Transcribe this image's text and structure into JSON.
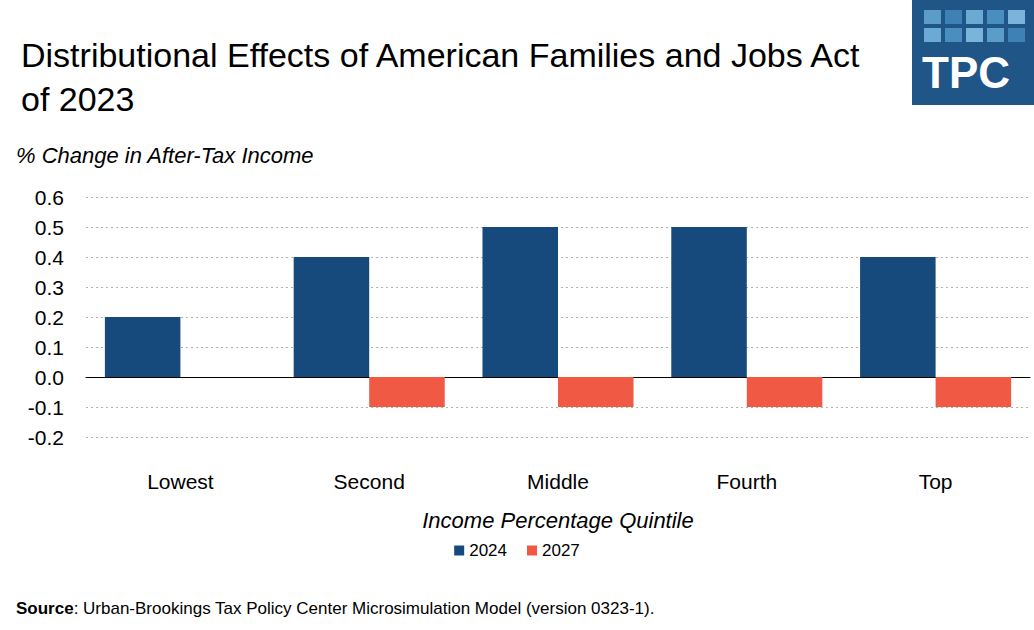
{
  "chart_data": {
    "type": "bar",
    "title": "Distributional Effects of American Families and Jobs Act of 2023",
    "y_label": "% Change in After-Tax Income",
    "x_label": "Income Percentage Quintile",
    "categories": [
      "Lowest",
      "Second",
      "Middle",
      "Fourth",
      "Top"
    ],
    "series": [
      {
        "name": "2024",
        "color": "#174a7c",
        "values": [
          0.2,
          0.4,
          0.5,
          0.5,
          0.4
        ]
      },
      {
        "name": "2027",
        "color": "#f05a44",
        "values": [
          0,
          -0.1,
          -0.1,
          -0.1,
          -0.1
        ]
      }
    ],
    "ylim": [
      -0.2,
      0.6
    ],
    "yticks": [
      -0.2,
      -0.1,
      {
        "value": 0,
        "label": "0.0"
      },
      0.1,
      0.2,
      0.3,
      0.4,
      0.5,
      0.6
    ],
    "grid": true,
    "legend": "bottom",
    "source": "Source: Urban-Brookings Tax Policy Center Microsimulation Model (version 0323-1).",
    "logo": "TPC"
  }
}
